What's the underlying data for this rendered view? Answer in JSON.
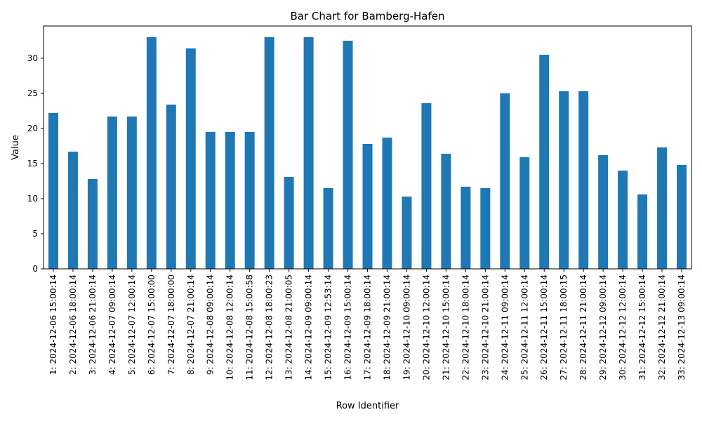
{
  "chart_data": {
    "type": "bar",
    "title": "Bar Chart for Bamberg-Hafen",
    "xlabel": "Row Identifier",
    "ylabel": "Value",
    "ylim": [
      0,
      34.6
    ],
    "yticks": [
      0,
      5,
      10,
      15,
      20,
      25,
      30
    ],
    "grid": false,
    "legend": "none",
    "bar_color": "#1f77b4",
    "categories": [
      "1: 2024-12-06 15:00:14",
      "2: 2024-12-06 18:00:14",
      "3: 2024-12-06 21:00:14",
      "4: 2024-12-07 09:00:14",
      "5: 2024-12-07 12:00:14",
      "6: 2024-12-07 15:00:00",
      "7: 2024-12-07 18:00:00",
      "8: 2024-12-07 21:00:14",
      "9: 2024-12-08 09:00:14",
      "10: 2024-12-08 12:00:14",
      "11: 2024-12-08 15:00:58",
      "12: 2024-12-08 18:00:23",
      "13: 2024-12-08 21:00:05",
      "14: 2024-12-09 09:00:14",
      "15: 2024-12-09 12:53:14",
      "16: 2024-12-09 15:00:14",
      "17: 2024-12-09 18:00:14",
      "18: 2024-12-09 21:00:14",
      "19: 2024-12-10 09:00:14",
      "20: 2024-12-10 12:00:14",
      "21: 2024-12-10 15:00:14",
      "22: 2024-12-10 18:00:14",
      "23: 2024-12-10 21:00:14",
      "24: 2024-12-11 09:00:14",
      "25: 2024-12-11 12:00:14",
      "26: 2024-12-11 15:00:14",
      "27: 2024-12-11 18:00:15",
      "28: 2024-12-11 21:00:14",
      "29: 2024-12-12 09:00:14",
      "30: 2024-12-12 12:00:14",
      "31: 2024-12-12 15:00:14",
      "32: 2024-12-12 21:00:14",
      "33: 2024-12-13 09:00:14"
    ],
    "values": [
      22.2,
      16.7,
      12.8,
      21.7,
      21.7,
      33.0,
      23.4,
      31.4,
      19.5,
      19.5,
      19.5,
      33.0,
      13.1,
      33.0,
      11.5,
      32.5,
      17.8,
      18.7,
      10.3,
      23.6,
      16.4,
      11.7,
      11.5,
      25.0,
      15.9,
      30.5,
      25.3,
      25.3,
      16.2,
      14.0,
      10.6,
      17.3,
      14.8
    ]
  }
}
